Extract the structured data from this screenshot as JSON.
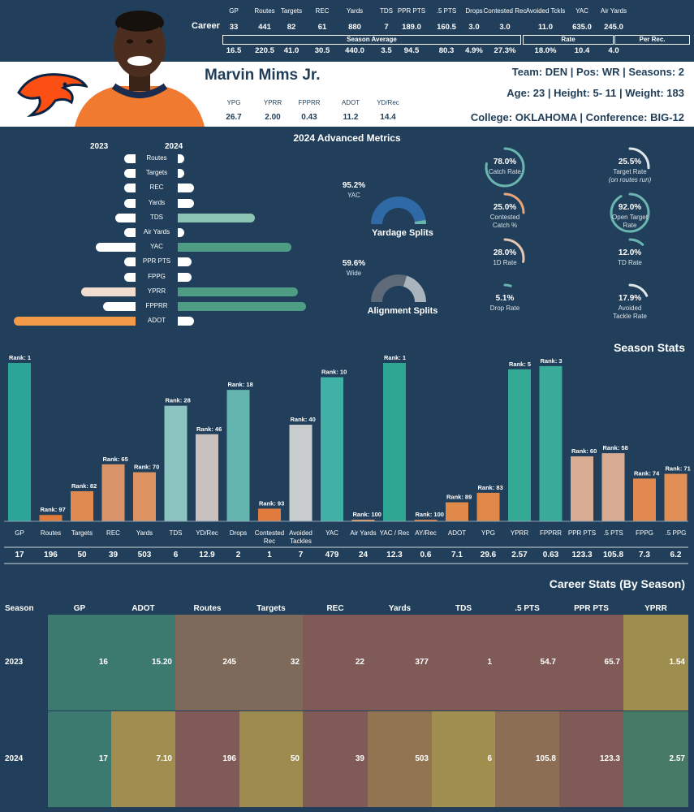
{
  "player": {
    "name": "Marvin Mims Jr.",
    "team_line": "Team: DEN  | Pos: WR | Seasons: 2",
    "age_line": "Age: 23 | Height: 5- 11 | Weight: 183",
    "college_line": "College: OKLAHOMA  | Conference: BIG-12"
  },
  "career": {
    "row_label": "Career",
    "headers": [
      "GP",
      "Routes",
      "Targets",
      "REC",
      "Yards",
      "TDS",
      "PPR PTS",
      ".5 PTS",
      "Drops",
      "Contested Rec",
      "Avoided Tckls",
      "YAC",
      "Air Yards"
    ],
    "values": [
      "33",
      "441",
      "82",
      "61",
      "880",
      "7",
      "189.0",
      "160.5",
      "3.0",
      "3.0",
      "11.0",
      "635.0",
      "245.0"
    ],
    "group_labels": [
      "Season Average",
      "Rate",
      "Per Rec."
    ],
    "sub_values": [
      "16.5",
      "220.5",
      "41.0",
      "30.5",
      "440.0",
      "3.5",
      "94.5",
      "80.3",
      "4.9%",
      "27.3%",
      "18.0%",
      "10.4",
      "4.0"
    ]
  },
  "mini_stats": {
    "headers": [
      "YPG",
      "YPRR",
      "FPPRR",
      "ADOT",
      "YD/Rec"
    ],
    "values": [
      "26.7",
      "2.00",
      "0.43",
      "11.2",
      "14.4"
    ]
  },
  "advanced": {
    "title": "2024 Advanced Metrics",
    "year_left": "2023",
    "year_right": "2024",
    "rows": [
      {
        "label": "Routes",
        "left": 0.07,
        "right": 0.05
      },
      {
        "label": "Targets",
        "left": 0.07,
        "right": 0.05
      },
      {
        "label": "REC",
        "left": 0.07,
        "right": 0.14
      },
      {
        "label": "Yards",
        "left": 0.07,
        "right": 0.14
      },
      {
        "label": "TDS",
        "left": 0.17,
        "right": 0.68
      },
      {
        "label": "Air Yards",
        "left": 0.07,
        "right": 0.05
      },
      {
        "label": "YAC",
        "left": 0.33,
        "right": 1.0
      },
      {
        "label": "PPR PTS",
        "left": 0.07,
        "right": 0.12
      },
      {
        "label": "FPPG",
        "left": 0.07,
        "right": 0.12
      },
      {
        "label": "YPRR",
        "left": 0.45,
        "right": 1.06
      },
      {
        "label": "FPPRR",
        "left": 0.27,
        "right": 1.13
      },
      {
        "label": "ADOT",
        "left": 1.0,
        "right": 0.14
      }
    ],
    "gauges": [
      {
        "value": "95.2%",
        "sub": "YAC",
        "title": "Yardage Splits",
        "fraction": 0.952,
        "color": "#2f6aa6",
        "rest": "#6ab5b0"
      },
      {
        "value": "59.6%",
        "sub": "Wide",
        "title": "Alignment Splits",
        "fraction": 0.596,
        "color": "#5e6a77",
        "rest": "#a9b4bd"
      }
    ],
    "rings": [
      {
        "value": "78.0%",
        "label": "Catch Rate",
        "fraction": 0.78,
        "color": "#6ab5b0"
      },
      {
        "value": "25.5%",
        "label": "Target Rate",
        "label2": "(on routes run)",
        "fraction": 0.255,
        "color": "#dfe6ea"
      },
      {
        "value": "25.0%",
        "label": "Contested",
        "label2": "Catch %",
        "fraction": 0.25,
        "color": "#e8a57a"
      },
      {
        "value": "92.0%",
        "label": "Open Target",
        "label2": "Rate",
        "fraction": 0.92,
        "color": "#6ab5b0"
      },
      {
        "value": "28.0%",
        "label": "1D Rate",
        "fraction": 0.28,
        "color": "#e8c6b0"
      },
      {
        "value": "12.0%",
        "label": "TD Rate",
        "fraction": 0.12,
        "color": "#6ab5b0"
      },
      {
        "value": "5.1%",
        "label": "Drop Rate",
        "fraction": 0.051,
        "color": "#6ab5b0"
      },
      {
        "value": "17.9%",
        "label": "Avoided",
        "label2": "Tackle Rate",
        "fraction": 0.179,
        "color": "#dfe6ea"
      }
    ]
  },
  "chart_data": {
    "type": "bar",
    "title": "Season Stats",
    "categories": [
      "GP",
      "Routes",
      "Targets",
      "REC",
      "Yards",
      "TDS",
      "YD/Rec",
      "Drops",
      "Contested Rec",
      "Avoided Tackles",
      "YAC",
      "Air Yards",
      "YAC / Rec",
      "AY/Rec",
      "ADOT",
      "YPG",
      "YPRR",
      "FPPRR",
      "PPR PTS",
      ".5 PTS",
      "FPPG",
      ".5 PPG"
    ],
    "ranks": [
      1,
      97,
      82,
      65,
      70,
      28,
      46,
      18,
      93,
      40,
      10,
      100,
      1,
      100,
      89,
      83,
      5,
      3,
      60,
      58,
      74,
      71
    ],
    "rank_prefix": "Rank: ",
    "values": [
      "17",
      "196",
      "50",
      "39",
      "503",
      "6",
      "12.9",
      "2",
      "1",
      "7",
      "479",
      "24",
      "12.3",
      "0.6",
      "7.1",
      "29.6",
      "2.57",
      "0.63",
      "123.3",
      "105.8",
      "7.3",
      "6.2"
    ],
    "colors": [
      "#2aa597",
      "#e07b3e",
      "#e08a52",
      "#d99469",
      "#de9462",
      "#8cc4c1",
      "#c9c1bd",
      "#64b5b0",
      "#e07a3d",
      "#c9cccd",
      "#3fb2a5",
      "#ea9a63",
      "#2ea694",
      "#e07a3d",
      "#e08949",
      "#e08848",
      "#33aa96",
      "#38ac98",
      "#d8ad93",
      "#d6ab92",
      "#e28950",
      "#e28f55"
    ]
  },
  "career_by_season": {
    "title": "Career Stats (By Season)",
    "headers": [
      "Season",
      "GP",
      "ADOT",
      "Routes",
      "Targets",
      "REC",
      "Yards",
      "TDS",
      ".5 PTS",
      "PPR PTS",
      "YPRR"
    ],
    "rows": [
      {
        "season": "2023",
        "cells": [
          "16",
          "15.20",
          "245",
          "32",
          "22",
          "377",
          "1",
          "54.7",
          "65.7",
          "1.54"
        ],
        "colors": [
          "#3c7a70",
          "#3c7a70",
          "#7e6a5a",
          "#7e6a5a",
          "#7f5a56",
          "#7f5a56",
          "#7f5a56",
          "#7f5a56",
          "#7f5a56",
          "#9d8d4e"
        ]
      },
      {
        "season": "2024",
        "cells": [
          "17",
          "7.10",
          "196",
          "50",
          "39",
          "503",
          "6",
          "105.8",
          "123.3",
          "2.57"
        ],
        "colors": [
          "#3c7a70",
          "#a08d4f",
          "#7f5a56",
          "#9d8a4e",
          "#7f5a56",
          "#927550",
          "#a08f4e",
          "#8c6e54",
          "#7f5a56",
          "#467a64"
        ]
      }
    ]
  }
}
